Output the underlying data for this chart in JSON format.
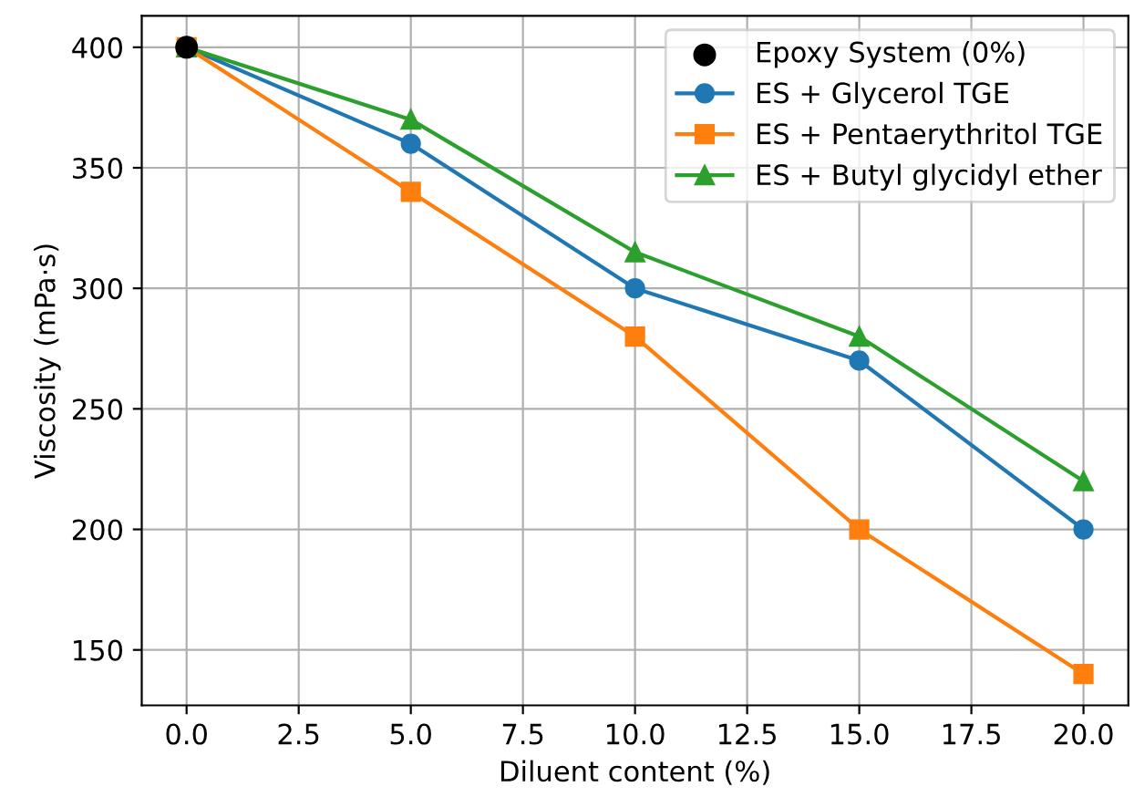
{
  "chart_data": {
    "type": "line",
    "xlabel": "Diluent content (%)",
    "ylabel": "Viscosity (mPa·s)",
    "x": [
      0,
      5,
      10,
      15,
      20
    ],
    "series": [
      {
        "name": "Epoxy System (0%)",
        "color": "#000000",
        "type": "scatter",
        "x": [
          0
        ],
        "values": [
          400
        ],
        "marker": "circle"
      },
      {
        "name": "ES + Glycerol TGE",
        "color": "#1f77b4",
        "values": [
          400,
          360,
          300,
          270,
          200
        ],
        "marker": "circle"
      },
      {
        "name": "ES + Pentaerythritol TGE",
        "color": "#ff7f0e",
        "values": [
          400,
          340,
          280,
          200,
          140
        ],
        "marker": "square"
      },
      {
        "name": "ES + Butyl glycidyl ether",
        "color": "#2ca02c",
        "values": [
          400,
          370,
          315,
          280,
          220
        ],
        "marker": "triangle"
      }
    ],
    "xlim": [
      -1,
      21
    ],
    "xticks": [
      {
        "value": 0,
        "label": "0.0"
      },
      {
        "value": 2.5,
        "label": "2.5"
      },
      {
        "value": 5,
        "label": "5.0"
      },
      {
        "value": 7.5,
        "label": "7.5"
      },
      {
        "value": 10,
        "label": "10.0"
      },
      {
        "value": 12.5,
        "label": "12.5"
      },
      {
        "value": 15,
        "label": "15.0"
      },
      {
        "value": 17.5,
        "label": "17.5"
      },
      {
        "value": 20,
        "label": "20.0"
      }
    ],
    "ylim": [
      127,
      413
    ],
    "yticks": [
      150,
      200,
      250,
      300,
      350,
      400
    ],
    "grid": true,
    "legend": "top right"
  }
}
